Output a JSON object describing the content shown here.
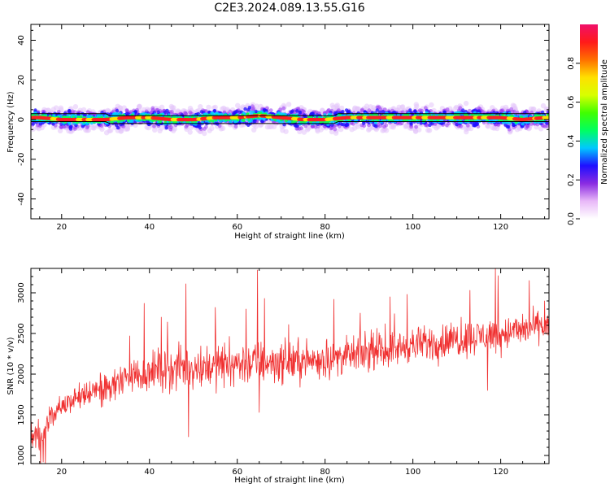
{
  "title": "C2E3.2024.089.13.55.G16",
  "chart_data": [
    {
      "type": "heatmap",
      "xlabel": "Height of straight line (km)",
      "ylabel": "Frequency (Hz)",
      "xlim": [
        13,
        131
      ],
      "ylim": [
        -50,
        48
      ],
      "xticks": [
        20,
        40,
        60,
        80,
        100,
        120
      ],
      "yticks": [
        -40,
        -20,
        0,
        20,
        40
      ],
      "colorbar": {
        "label": "Normalized spectral amplitude",
        "range": [
          0,
          1
        ],
        "ticks": [
          "0.0",
          "0.2",
          "0.4",
          "0.6",
          "0.8"
        ],
        "colors": [
          "#ffffff",
          "#e8b8f8",
          "#8a2be2",
          "#1e10ff",
          "#00c8ff",
          "#00ff60",
          "#40ff00",
          "#d8ff00",
          "#ffe000",
          "#ff7000",
          "#ff1a1a",
          "#f0106a"
        ]
      },
      "ridge": {
        "description": "Narrow band of maximal amplitude centred on about 0 to 2 Hz across all heights",
        "points": [
          [
            15,
            1
          ],
          [
            20,
            0
          ],
          [
            30,
            0
          ],
          [
            35,
            1
          ],
          [
            40,
            1
          ],
          [
            45,
            0
          ],
          [
            50,
            0
          ],
          [
            55,
            1
          ],
          [
            60,
            1
          ],
          [
            65,
            2
          ],
          [
            70,
            1
          ],
          [
            75,
            0
          ],
          [
            80,
            0
          ],
          [
            85,
            1
          ],
          [
            90,
            1
          ],
          [
            95,
            1
          ],
          [
            100,
            1
          ],
          [
            105,
            1
          ],
          [
            110,
            1
          ],
          [
            115,
            1
          ],
          [
            120,
            1
          ],
          [
            125,
            0
          ],
          [
            130,
            1
          ]
        ],
        "band_top": [
          [
            13,
            3
          ],
          [
            30,
            3
          ],
          [
            31,
            2
          ],
          [
            82,
            2
          ],
          [
            83,
            3
          ],
          [
            131,
            3
          ]
        ],
        "band_bottom": [
          [
            13,
            -1
          ],
          [
            30,
            -1
          ],
          [
            31,
            -2
          ],
          [
            82,
            -2
          ],
          [
            83,
            -1
          ],
          [
            131,
            -1
          ]
        ]
      }
    },
    {
      "type": "line",
      "xlabel": "Height of straight line (km)",
      "ylabel": "SNR (10 * v/v)",
      "xlim": [
        13,
        131
      ],
      "ylim": [
        900,
        3300
      ],
      "xticks": [
        20,
        40,
        60,
        80,
        100,
        120
      ],
      "yticks": [
        1000,
        1500,
        2000,
        2500,
        3000
      ],
      "series": [
        {
          "color": "#f03030",
          "x_step": 0.1,
          "trend": [
            [
              13,
              1300
            ],
            [
              15,
              1250
            ],
            [
              17,
              1450
            ],
            [
              20,
              1620
            ],
            [
              25,
              1730
            ],
            [
              30,
              1830
            ],
            [
              35,
              1960
            ],
            [
              40,
              2030
            ],
            [
              50,
              2090
            ],
            [
              60,
              2130
            ],
            [
              70,
              2150
            ],
            [
              80,
              2180
            ],
            [
              90,
              2260
            ],
            [
              100,
              2350
            ],
            [
              110,
              2430
            ],
            [
              120,
              2500
            ],
            [
              131,
              2600
            ]
          ],
          "spread": [
            [
              13,
              260
            ],
            [
              20,
              200
            ],
            [
              35,
              320
            ],
            [
              50,
              420
            ],
            [
              70,
              380
            ],
            [
              90,
              300
            ],
            [
              110,
              330
            ],
            [
              131,
              280
            ]
          ],
          "spikes": [
            [
              15.2,
              880
            ],
            [
              15.8,
              920
            ],
            [
              16.3,
              870
            ],
            [
              35.5,
              2470
            ],
            [
              38.8,
              2870
            ],
            [
              42.7,
              2700
            ],
            [
              44.1,
              2640
            ],
            [
              48.3,
              3110
            ],
            [
              48.9,
              1230
            ],
            [
              55.0,
              2820
            ],
            [
              62.0,
              2800
            ],
            [
              64.6,
              3280
            ],
            [
              65.0,
              1530
            ],
            [
              66.2,
              2930
            ],
            [
              82.0,
              2920
            ],
            [
              88.0,
              2750
            ],
            [
              94.8,
              2950
            ],
            [
              98.7,
              2980
            ],
            [
              111.0,
              2700
            ],
            [
              113.0,
              3030
            ],
            [
              118.8,
              3300
            ],
            [
              119.4,
              3210
            ],
            [
              117.0,
              1800
            ],
            [
              126.5,
              3150
            ],
            [
              130.0,
              2900
            ]
          ]
        }
      ]
    }
  ]
}
